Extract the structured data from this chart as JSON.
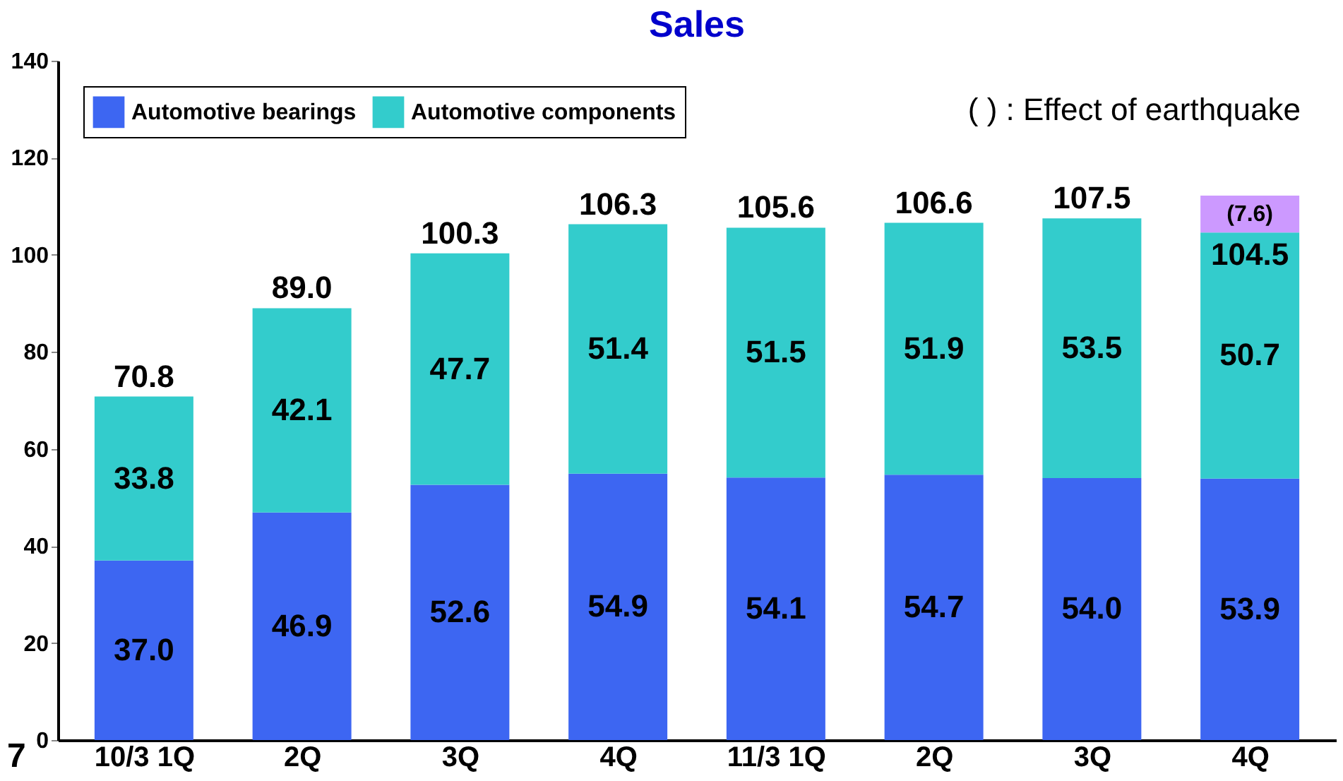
{
  "chart_data": {
    "type": "bar",
    "title": "Sales",
    "stacked": true,
    "categories": [
      "10/3 1Q",
      "2Q",
      "3Q",
      "4Q",
      "11/3 1Q",
      "2Q",
      "3Q",
      "4Q"
    ],
    "series": [
      {
        "name": "Automotive bearings",
        "color": "#3d66f2",
        "values": [
          37.0,
          46.9,
          52.6,
          54.9,
          54.1,
          54.7,
          54.0,
          53.9
        ],
        "value_labels": [
          "37.0",
          "46.9",
          "52.6",
          "54.9",
          "54.1",
          "54.7",
          "54.0",
          "53.9"
        ]
      },
      {
        "name": "Automotive components",
        "color": "#33cccc",
        "values": [
          33.8,
          42.1,
          47.7,
          51.4,
          51.5,
          51.9,
          53.5,
          50.7
        ],
        "value_labels": [
          "33.8",
          "42.1",
          "47.7",
          "51.4",
          "51.5",
          "51.9",
          "53.5",
          "50.7"
        ]
      },
      {
        "color": "#cc99ff",
        "values": [
          null,
          null,
          null,
          null,
          null,
          null,
          null,
          7.6
        ],
        "value_labels": [
          null,
          null,
          null,
          null,
          null,
          null,
          null,
          "(7.6)"
        ]
      }
    ],
    "totals": [
      "70.8",
      "89.0",
      "100.3",
      "106.3",
      "105.6",
      "106.6",
      "107.5",
      null
    ],
    "ylim": [
      0,
      140
    ],
    "yticks": [
      0,
      20,
      40,
      60,
      80,
      100,
      120,
      140
    ],
    "grid": false,
    "legend": "top left",
    "data_labels": true,
    "annotations": [
      "( ) : Effect of earthquake",
      "7",
      "104.5"
    ]
  }
}
